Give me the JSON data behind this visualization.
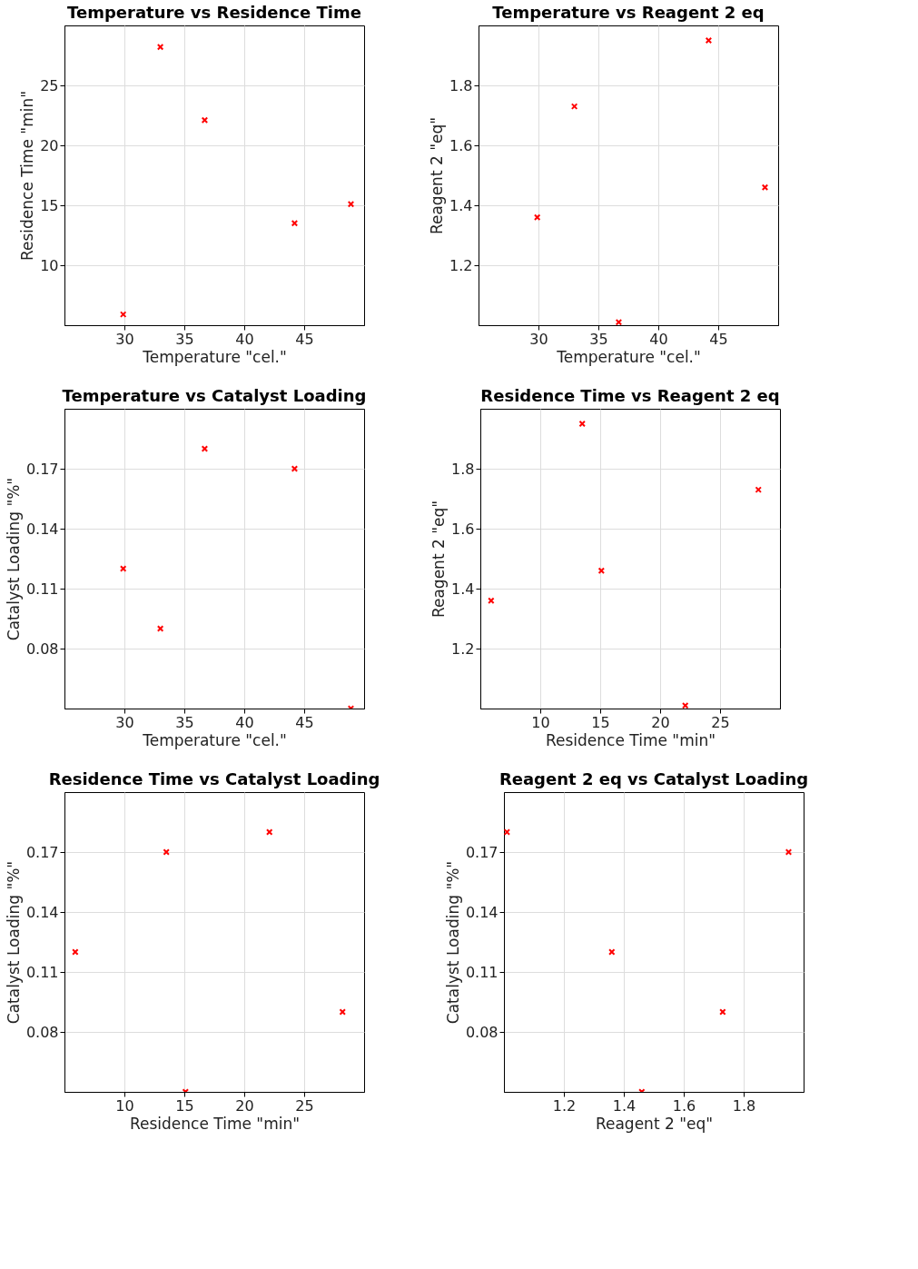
{
  "chart_data": [
    {
      "type": "scatter",
      "title": "Temperature vs Residence Time",
      "xlabel": "Temperature \"cel.\"",
      "ylabel": "Residence Time \"min\"",
      "x": [
        29.9,
        33,
        36.7,
        44.2,
        48.9
      ],
      "series": [
        {
          "color": "#ff0000",
          "values": [
            5.9,
            28.2,
            22.1,
            13.5,
            15.1
          ]
        }
      ],
      "xlim": [
        25,
        50
      ],
      "ylim": [
        5,
        30
      ],
      "xticks": [
        30,
        35,
        40,
        45
      ],
      "yticks": [
        10,
        15,
        20,
        25
      ],
      "grid": true,
      "marker": "cross"
    },
    {
      "type": "scatter",
      "title": "Temperature vs Reagent 2 eq",
      "xlabel": "Temperature \"cel.\"",
      "ylabel": "Reagent 2 \"eq\"",
      "x": [
        29.9,
        33,
        36.7,
        44.2,
        48.9
      ],
      "series": [
        {
          "color": "#ff0000",
          "values": [
            1.36,
            1.73,
            1.01,
            1.95,
            1.46
          ]
        }
      ],
      "xlim": [
        25,
        50
      ],
      "ylim": [
        1.0,
        2.0
      ],
      "xticks": [
        30,
        35,
        40,
        45
      ],
      "yticks": [
        1.2,
        1.4,
        1.6,
        1.8
      ],
      "grid": true,
      "marker": "cross"
    },
    {
      "type": "scatter",
      "title": "Temperature vs Catalyst Loading",
      "xlabel": "Temperature \"cel.\"",
      "ylabel": "Catalyst Loading \"%\"",
      "x": [
        29.9,
        33,
        36.7,
        44.2,
        48.9
      ],
      "series": [
        {
          "color": "#ff0000",
          "values": [
            0.12,
            0.09,
            0.18,
            0.17,
            0.05
          ]
        }
      ],
      "xlim": [
        25,
        50
      ],
      "ylim": [
        0.05,
        0.2
      ],
      "xticks": [
        30,
        35,
        40,
        45
      ],
      "yticks": [
        0.08,
        0.11,
        0.14,
        0.17
      ],
      "grid": true,
      "marker": "cross"
    },
    {
      "type": "scatter",
      "title": "Residence Time vs Reagent 2 eq",
      "xlabel": "Residence Time \"min\"",
      "ylabel": "Reagent 2 \"eq\"",
      "x": [
        5.9,
        28.2,
        22.1,
        13.5,
        15.1
      ],
      "series": [
        {
          "color": "#ff0000",
          "values": [
            1.36,
            1.73,
            1.01,
            1.95,
            1.46
          ]
        }
      ],
      "xlim": [
        5,
        30
      ],
      "ylim": [
        1.0,
        2.0
      ],
      "xticks": [
        10,
        15,
        20,
        25
      ],
      "yticks": [
        1.2,
        1.4,
        1.6,
        1.8
      ],
      "grid": true,
      "marker": "cross"
    },
    {
      "type": "scatter",
      "title": "Residence Time vs Catalyst Loading",
      "xlabel": "Residence Time \"min\"",
      "ylabel": "Catalyst Loading \"%\"",
      "x": [
        5.9,
        28.2,
        22.1,
        13.5,
        15.1
      ],
      "series": [
        {
          "color": "#ff0000",
          "values": [
            0.12,
            0.09,
            0.18,
            0.17,
            0.05
          ]
        }
      ],
      "xlim": [
        5,
        30
      ],
      "ylim": [
        0.05,
        0.2
      ],
      "xticks": [
        10,
        15,
        20,
        25
      ],
      "yticks": [
        0.08,
        0.11,
        0.14,
        0.17
      ],
      "grid": true,
      "marker": "cross"
    },
    {
      "type": "scatter",
      "title": "Reagent 2 eq vs Catalyst Loading",
      "xlabel": "Reagent 2 \"eq\"",
      "ylabel": "Catalyst Loading \"%\"",
      "x": [
        1.36,
        1.73,
        1.01,
        1.95,
        1.46
      ],
      "series": [
        {
          "color": "#ff0000",
          "values": [
            0.12,
            0.09,
            0.18,
            0.17,
            0.05
          ]
        }
      ],
      "xlim": [
        1.0,
        2.0
      ],
      "ylim": [
        0.05,
        0.2
      ],
      "xticks": [
        1.2,
        1.4,
        1.6,
        1.8
      ],
      "yticks": [
        0.08,
        0.11,
        0.14,
        0.17
      ],
      "grid": true,
      "marker": "cross"
    }
  ]
}
